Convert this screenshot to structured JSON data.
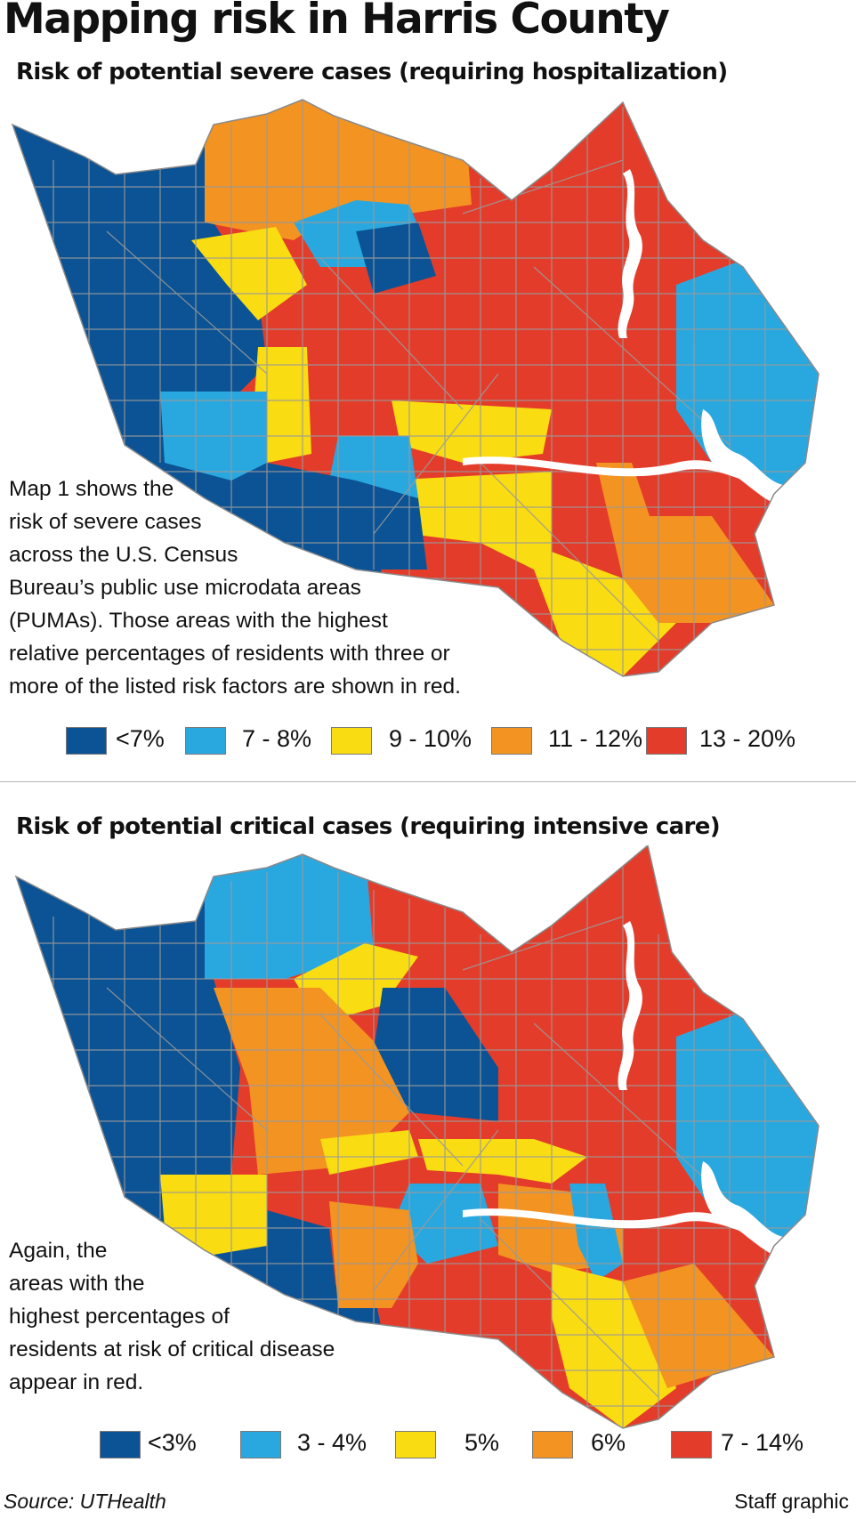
{
  "title": "Mapping risk in Harris County",
  "maps": [
    {
      "subtitle": "Risk of potential severe cases (requiring hospitalization)",
      "caption_lines": [
        "Map 1 shows the",
        "risk of severe cases",
        "across the U.S. Census",
        "Bureau’s public use microdata  areas",
        "(PUMAs). Those areas with the highest",
        "relative percentages of residents with three or",
        "more of the listed risk factors are shown in red."
      ],
      "legend": [
        {
          "label": "<7%",
          "color": "#0b5394"
        },
        {
          "label": "7 - 8%",
          "color": "#29a8e0"
        },
        {
          "label": "9 - 10%",
          "color": "#f9dc12"
        },
        {
          "label": "11 - 12%",
          "color": "#f39321"
        },
        {
          "label": "13 - 20%",
          "color": "#e43c2a"
        }
      ]
    },
    {
      "subtitle": "Risk of potential  critical cases (requiring intensive care)",
      "caption_lines": [
        "Again, the",
        "areas with the",
        "highest percentages of",
        "residents at risk of critical disease",
        "appear in red."
      ],
      "legend": [
        {
          "label": "<3%",
          "color": "#0b5394"
        },
        {
          "label": "3 - 4%",
          "color": "#29a8e0"
        },
        {
          "label": "5%",
          "color": "#f9dc12"
        },
        {
          "label": "6%",
          "color": "#f39321"
        },
        {
          "label": "7 - 14%",
          "color": "#e43c2a"
        }
      ]
    }
  ],
  "source": "Source: UTHealth",
  "credit": "Staff graphic"
}
